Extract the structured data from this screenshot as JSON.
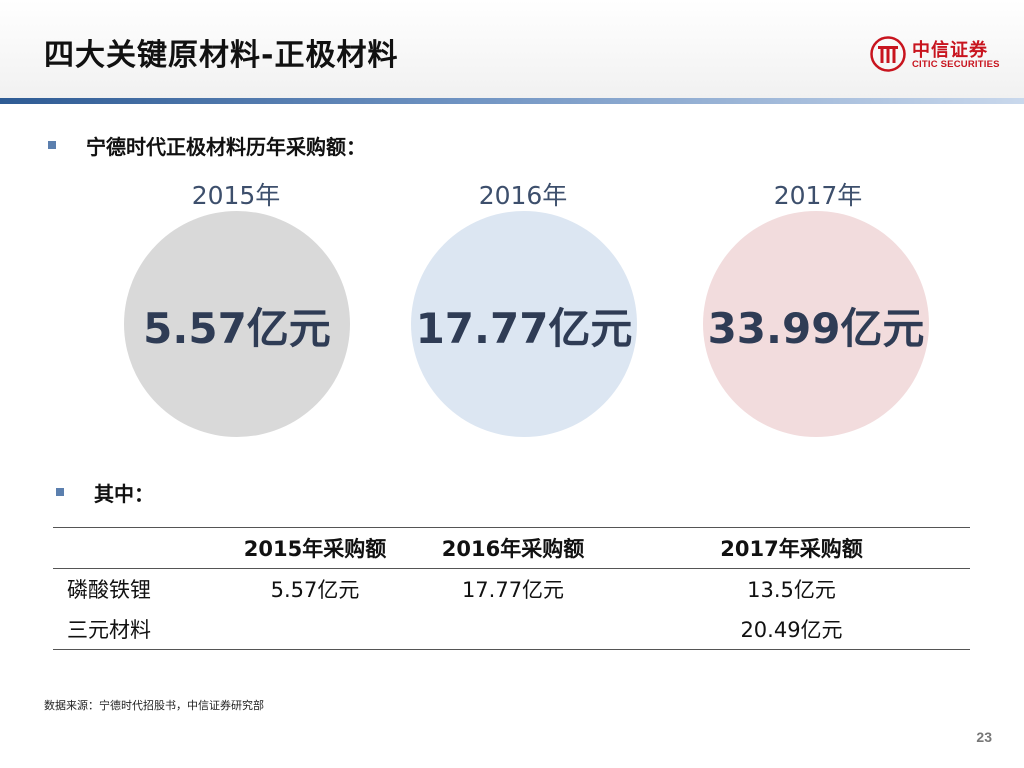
{
  "header": {
    "title": "四大关键原材料-正极材料",
    "logo_cn": "中信证券",
    "logo_en": "CITIC SECURITIES"
  },
  "section1": {
    "label": "宁德时代正极材料历年采购额："
  },
  "circles": [
    {
      "year": "2015年",
      "value": "5.57亿元",
      "color": "#d9d9d9"
    },
    {
      "year": "2016年",
      "value": "17.77亿元",
      "color": "#dce6f2"
    },
    {
      "year": "2017年",
      "value": "33.99亿元",
      "color": "#f2dcdd"
    }
  ],
  "section2": {
    "label": "其中："
  },
  "table": {
    "headers": [
      "",
      "2015年采购额",
      "2016年采购额",
      "2017年采购额"
    ],
    "rows": [
      [
        "磷酸铁锂",
        "5.57亿元",
        "17.77亿元",
        "13.5亿元"
      ],
      [
        "三元材料",
        "",
        "",
        "20.49亿元"
      ]
    ]
  },
  "source": "数据来源：宁德时代招股书，中信证券研究部",
  "page_number": "23",
  "colors": {
    "accent_bar": "#2e5b94",
    "bullet": "#5b7fae",
    "value_text": "#2f3c55",
    "logo_red": "#c8141e"
  }
}
